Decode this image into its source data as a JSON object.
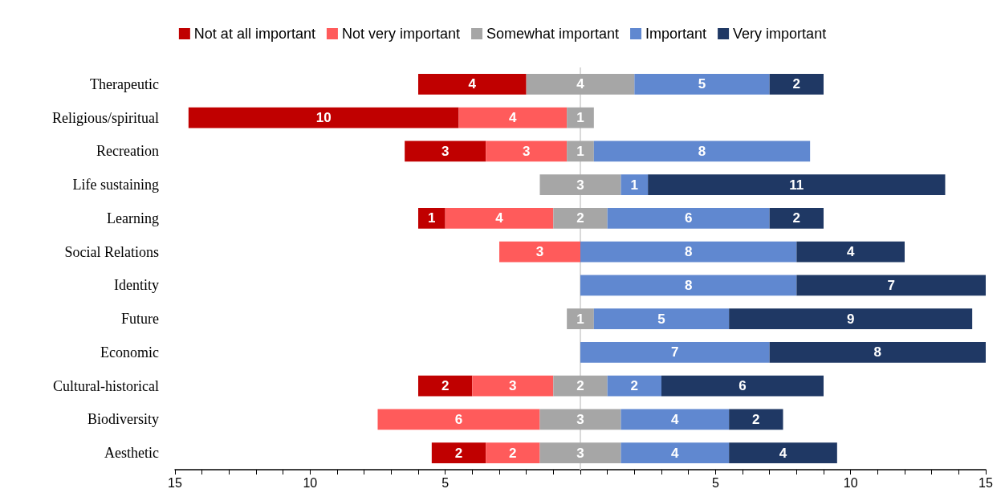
{
  "chart_data": {
    "type": "bar",
    "orientation": "horizontal",
    "categories": [
      "Therapeutic",
      "Religious/spiritual",
      "Recreation",
      "Life sustaining",
      "Learning",
      "Social Relations",
      "Identity",
      "Future",
      "Economic",
      "Cultural-historical",
      "Biodiversity",
      "Aesthetic"
    ],
    "series": [
      {
        "name": "Not at all important",
        "color": "#c00000",
        "values": [
          4,
          10,
          3,
          null,
          1,
          null,
          null,
          null,
          null,
          2,
          null,
          2
        ],
        "base": [
          -6,
          -14.5,
          -6.5,
          null,
          -6,
          null,
          null,
          null,
          null,
          -6,
          null,
          -5.5
        ]
      },
      {
        "name": "Not very important",
        "color": "#ff5b5b",
        "values": [
          null,
          4,
          3,
          null,
          4,
          3,
          null,
          null,
          null,
          3,
          6,
          2
        ],
        "base": [
          null,
          -4.5,
          -3.5,
          null,
          -5,
          -3,
          null,
          null,
          null,
          -4,
          -7.5,
          -3.5
        ]
      },
      {
        "name": "Somewhat important",
        "color": "#a6a6a6",
        "values": [
          4,
          1,
          1,
          3,
          2,
          null,
          null,
          1,
          null,
          2,
          3,
          3
        ],
        "base": [
          -2,
          -0.5,
          -0.5,
          -1.5,
          -1,
          null,
          null,
          -0.5,
          null,
          -1,
          -1.5,
          -1.5
        ]
      },
      {
        "name": "Important",
        "color": "#6088d0",
        "values": [
          5,
          null,
          8,
          1,
          6,
          8,
          8,
          5,
          7,
          2,
          4,
          4
        ],
        "base": [
          2,
          null,
          0.5,
          1.5,
          1,
          0,
          0,
          0.5,
          0,
          1,
          1.5,
          1.5
        ]
      },
      {
        "name": "Very important",
        "color": "#1f3864",
        "values": [
          2,
          null,
          null,
          11,
          2,
          4,
          7,
          9,
          8,
          6,
          2,
          4
        ],
        "base": [
          7,
          null,
          null,
          2.5,
          7,
          8,
          8,
          5.5,
          7,
          3,
          5.5,
          5.5
        ]
      }
    ],
    "xlim": [
      -15,
      15
    ],
    "xticks": [
      {
        "value": -15,
        "label": "15"
      },
      {
        "value": -14,
        "label": null
      },
      {
        "value": -13,
        "label": null
      },
      {
        "value": -12,
        "label": null
      },
      {
        "value": -11,
        "label": null
      },
      {
        "value": -10,
        "label": "10"
      },
      {
        "value": -9,
        "label": null
      },
      {
        "value": -8,
        "label": null
      },
      {
        "value": -7,
        "label": null
      },
      {
        "value": -6,
        "label": null
      },
      {
        "value": -5,
        "label": "5"
      },
      {
        "value": -4,
        "label": null
      },
      {
        "value": -3,
        "label": null
      },
      {
        "value": -2,
        "label": null
      },
      {
        "value": -1,
        "label": null
      },
      {
        "value": 0,
        "label": null
      },
      {
        "value": 1,
        "label": null
      },
      {
        "value": 2,
        "label": null
      },
      {
        "value": 3,
        "label": null
      },
      {
        "value": 4,
        "label": null
      },
      {
        "value": 5,
        "label": "5"
      },
      {
        "value": 6,
        "label": null
      },
      {
        "value": 7,
        "label": null
      },
      {
        "value": 8,
        "label": null
      },
      {
        "value": 9,
        "label": null
      },
      {
        "value": 10,
        "label": "10"
      },
      {
        "value": 11,
        "label": null
      },
      {
        "value": 12,
        "label": null
      },
      {
        "value": 13,
        "label": null
      },
      {
        "value": 14,
        "label": null
      },
      {
        "value": 15,
        "label": "15"
      }
    ],
    "ref_lines": [
      {
        "axis": "x",
        "value": 0,
        "color": "#d9d9d9"
      }
    ],
    "data_labels": true,
    "grid": false,
    "legend": "top"
  }
}
